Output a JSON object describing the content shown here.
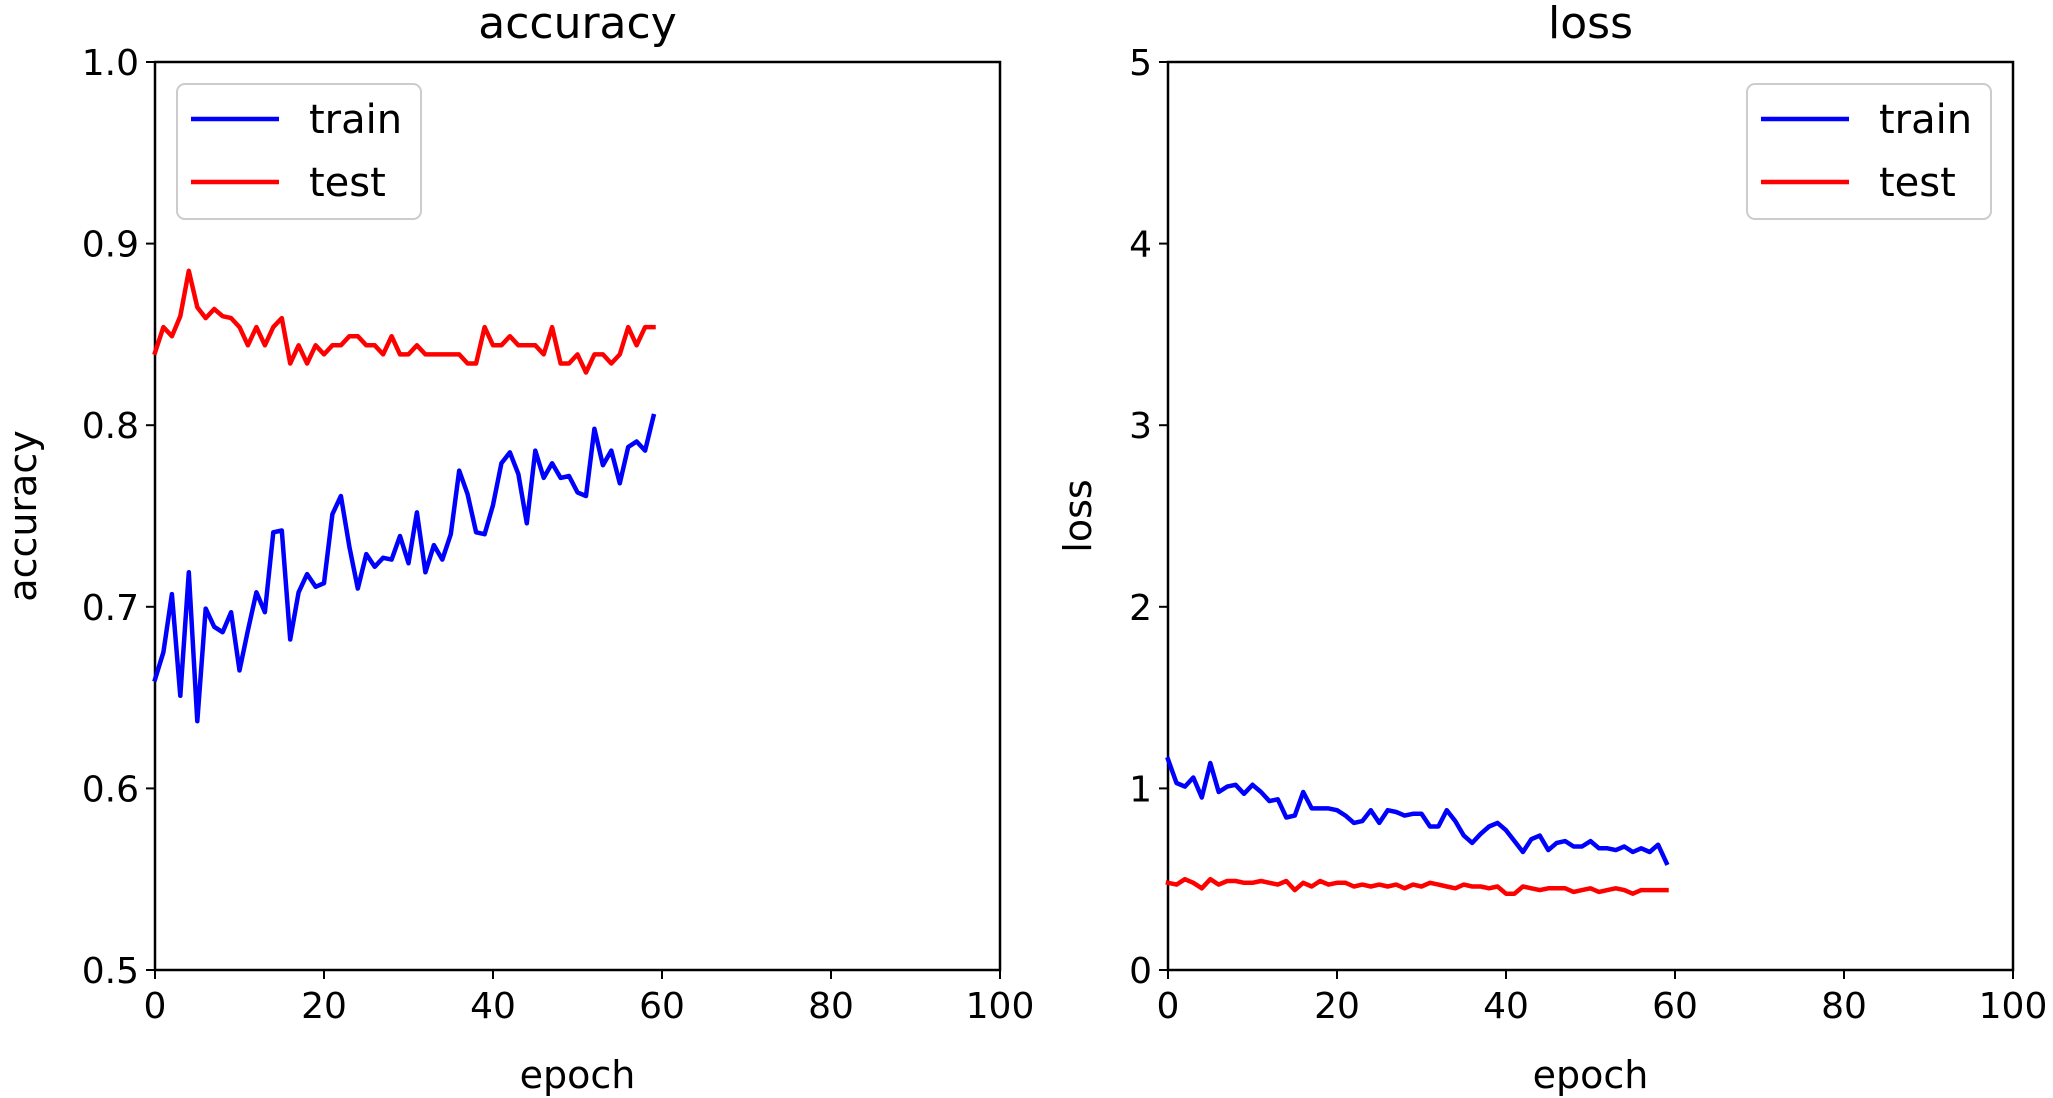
{
  "chart_data": [
    {
      "type": "line",
      "title": "accuracy",
      "xlabel": "epoch",
      "ylabel": "accuracy",
      "xlim": [
        0,
        100
      ],
      "ylim": [
        0.5,
        1.0
      ],
      "xticks": [
        "0",
        "20",
        "40",
        "60",
        "80",
        "100"
      ],
      "yticks": [
        "0.5",
        "0.6",
        "0.7",
        "0.8",
        "0.9",
        "1.0"
      ],
      "grid": false,
      "legend_position": "top-left",
      "x": [
        0,
        1,
        2,
        3,
        4,
        5,
        6,
        7,
        8,
        9,
        10,
        11,
        12,
        13,
        14,
        15,
        16,
        17,
        18,
        19,
        20,
        21,
        22,
        23,
        24,
        25,
        26,
        27,
        28,
        29,
        30,
        31,
        32,
        33,
        34,
        35,
        36,
        37,
        38,
        39,
        40,
        41,
        42,
        43,
        44,
        45,
        46,
        47,
        48,
        49,
        50,
        51,
        52,
        53,
        54,
        55,
        56,
        57,
        58,
        59
      ],
      "series": [
        {
          "name": "train",
          "color": "#0000ff",
          "values": [
            0.66,
            0.675,
            0.707,
            0.651,
            0.719,
            0.637,
            0.699,
            0.689,
            0.686,
            0.697,
            0.665,
            0.687,
            0.708,
            0.697,
            0.741,
            0.742,
            0.682,
            0.708,
            0.718,
            0.711,
            0.713,
            0.751,
            0.761,
            0.733,
            0.71,
            0.729,
            0.722,
            0.727,
            0.726,
            0.739,
            0.724,
            0.752,
            0.719,
            0.734,
            0.726,
            0.74,
            0.775,
            0.762,
            0.741,
            0.74,
            0.756,
            0.779,
            0.785,
            0.773,
            0.746,
            0.786,
            0.771,
            0.779,
            0.771,
            0.772,
            0.763,
            0.761,
            0.798,
            0.778,
            0.786,
            0.768,
            0.788,
            0.791,
            0.786,
            0.805
          ]
        },
        {
          "name": "test",
          "color": "#ff0000",
          "values": [
            0.84,
            0.854,
            0.849,
            0.86,
            0.885,
            0.865,
            0.859,
            0.864,
            0.86,
            0.859,
            0.854,
            0.844,
            0.854,
            0.844,
            0.854,
            0.859,
            0.834,
            0.844,
            0.834,
            0.844,
            0.839,
            0.844,
            0.844,
            0.849,
            0.849,
            0.844,
            0.844,
            0.839,
            0.849,
            0.839,
            0.839,
            0.844,
            0.839,
            0.839,
            0.839,
            0.839,
            0.839,
            0.834,
            0.834,
            0.854,
            0.844,
            0.844,
            0.849,
            0.844,
            0.844,
            0.844,
            0.839,
            0.854,
            0.834,
            0.834,
            0.839,
            0.829,
            0.839,
            0.839,
            0.834,
            0.839,
            0.854,
            0.844,
            0.854,
            0.854
          ]
        }
      ]
    },
    {
      "type": "line",
      "title": "loss",
      "xlabel": "epoch",
      "ylabel": "loss",
      "xlim": [
        0,
        100
      ],
      "ylim": [
        0,
        5
      ],
      "xticks": [
        "0",
        "20",
        "40",
        "60",
        "80",
        "100"
      ],
      "yticks": [
        "0",
        "1",
        "2",
        "3",
        "4",
        "5"
      ],
      "grid": false,
      "legend_position": "top-right",
      "x": [
        0,
        1,
        2,
        3,
        4,
        5,
        6,
        7,
        8,
        9,
        10,
        11,
        12,
        13,
        14,
        15,
        16,
        17,
        18,
        19,
        20,
        21,
        22,
        23,
        24,
        25,
        26,
        27,
        28,
        29,
        30,
        31,
        32,
        33,
        34,
        35,
        36,
        37,
        38,
        39,
        40,
        41,
        42,
        43,
        44,
        45,
        46,
        47,
        48,
        49,
        50,
        51,
        52,
        53,
        54,
        55,
        56,
        57,
        58,
        59
      ],
      "series": [
        {
          "name": "train",
          "color": "#0000ff",
          "values": [
            1.16,
            1.03,
            1.01,
            1.06,
            0.95,
            1.14,
            0.98,
            1.01,
            1.02,
            0.97,
            1.02,
            0.98,
            0.93,
            0.94,
            0.84,
            0.85,
            0.98,
            0.89,
            0.89,
            0.89,
            0.88,
            0.85,
            0.81,
            0.82,
            0.88,
            0.81,
            0.88,
            0.87,
            0.85,
            0.86,
            0.86,
            0.79,
            0.79,
            0.88,
            0.82,
            0.74,
            0.7,
            0.75,
            0.79,
            0.81,
            0.77,
            0.71,
            0.65,
            0.72,
            0.74,
            0.66,
            0.7,
            0.71,
            0.68,
            0.68,
            0.71,
            0.67,
            0.67,
            0.66,
            0.68,
            0.65,
            0.67,
            0.65,
            0.69,
            0.59
          ]
        },
        {
          "name": "test",
          "color": "#ff0000",
          "values": [
            0.48,
            0.47,
            0.5,
            0.48,
            0.45,
            0.5,
            0.47,
            0.49,
            0.49,
            0.48,
            0.48,
            0.49,
            0.48,
            0.47,
            0.49,
            0.44,
            0.48,
            0.46,
            0.49,
            0.47,
            0.48,
            0.48,
            0.46,
            0.47,
            0.46,
            0.47,
            0.46,
            0.47,
            0.45,
            0.47,
            0.46,
            0.48,
            0.47,
            0.46,
            0.45,
            0.47,
            0.46,
            0.46,
            0.45,
            0.46,
            0.42,
            0.42,
            0.46,
            0.45,
            0.44,
            0.45,
            0.45,
            0.45,
            0.43,
            0.44,
            0.45,
            0.43,
            0.44,
            0.45,
            0.44,
            0.42,
            0.44,
            0.44,
            0.44,
            0.44
          ]
        }
      ]
    }
  ]
}
